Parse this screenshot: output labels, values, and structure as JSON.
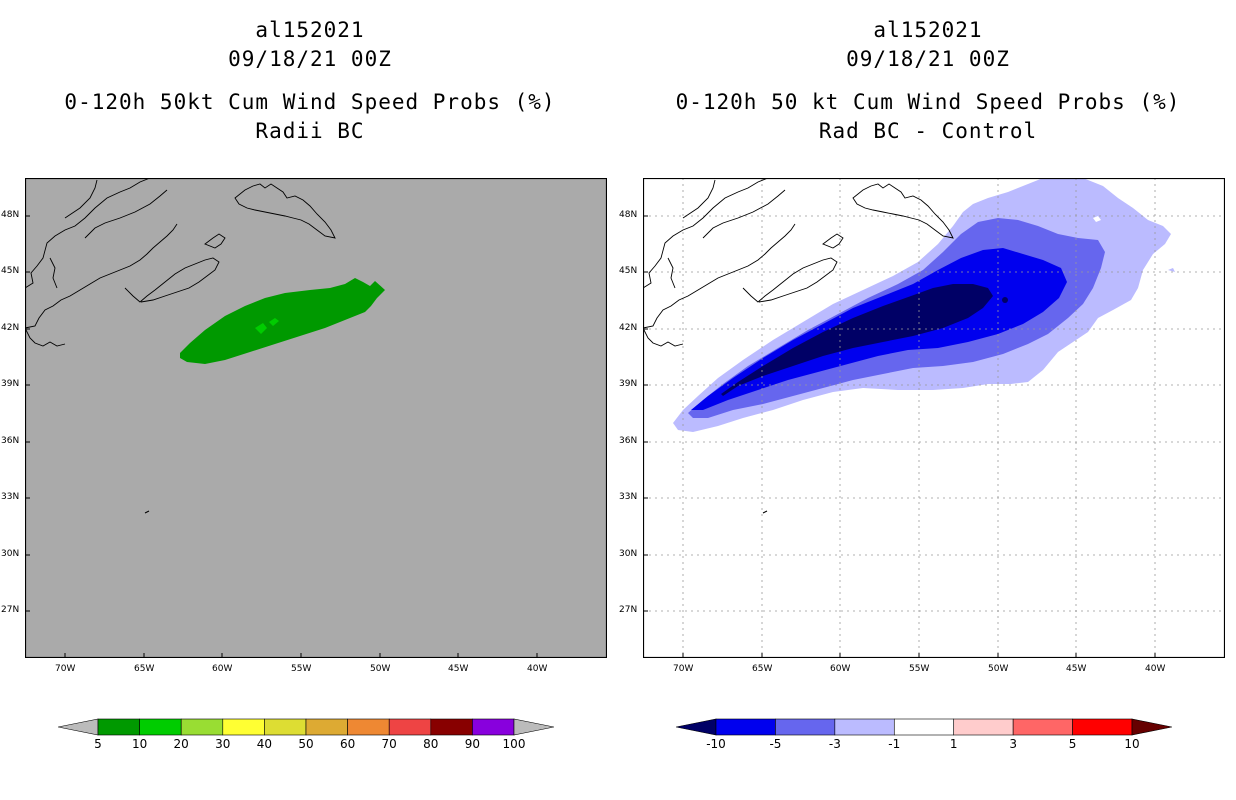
{
  "left_panel": {
    "storm_id": "al152021",
    "datetime": "09/18/21 00Z",
    "product": "0-120h 50kt Cum Wind Speed Probs (%)",
    "subtitle": "Radii BC",
    "colorbar": {
      "labels": [
        "5",
        "10",
        "20",
        "30",
        "40",
        "50",
        "60",
        "70",
        "80",
        "90",
        "100"
      ],
      "colors": [
        "#009900",
        "#00cc00",
        "#99dd33",
        "#ffff33",
        "#dddd33",
        "#ddaa33",
        "#ee8833",
        "#ee4444",
        "#880000",
        "#8800dd"
      ],
      "low_arrow_color": "#bbbbbb",
      "high_arrow_color": "#bbbbbb"
    },
    "background_color": "#aaaaaa"
  },
  "right_panel": {
    "storm_id": "al152021",
    "datetime": "09/18/21 00Z",
    "product": "0-120h 50 kt Cum Wind Speed Probs (%)",
    "subtitle": "Rad BC - Control",
    "colorbar": {
      "labels": [
        "-10",
        "-5",
        "-3",
        "-1",
        "1",
        "3",
        "5",
        "10"
      ],
      "colors": [
        "#0000ee",
        "#6666ee",
        "#bbbbff",
        "#ffffff",
        "#ffcccc",
        "#ff6666",
        "#ff0000"
      ],
      "low_arrow_color": "#000066",
      "high_arrow_color": "#660000"
    },
    "background_color": "#ffffff"
  },
  "axes": {
    "lon_labels": [
      "70W",
      "65W",
      "60W",
      "55W",
      "50W",
      "45W",
      "40W"
    ],
    "lat_labels": [
      "48N",
      "45N",
      "42N",
      "39N",
      "36N",
      "33N",
      "30N",
      "27N"
    ]
  }
}
